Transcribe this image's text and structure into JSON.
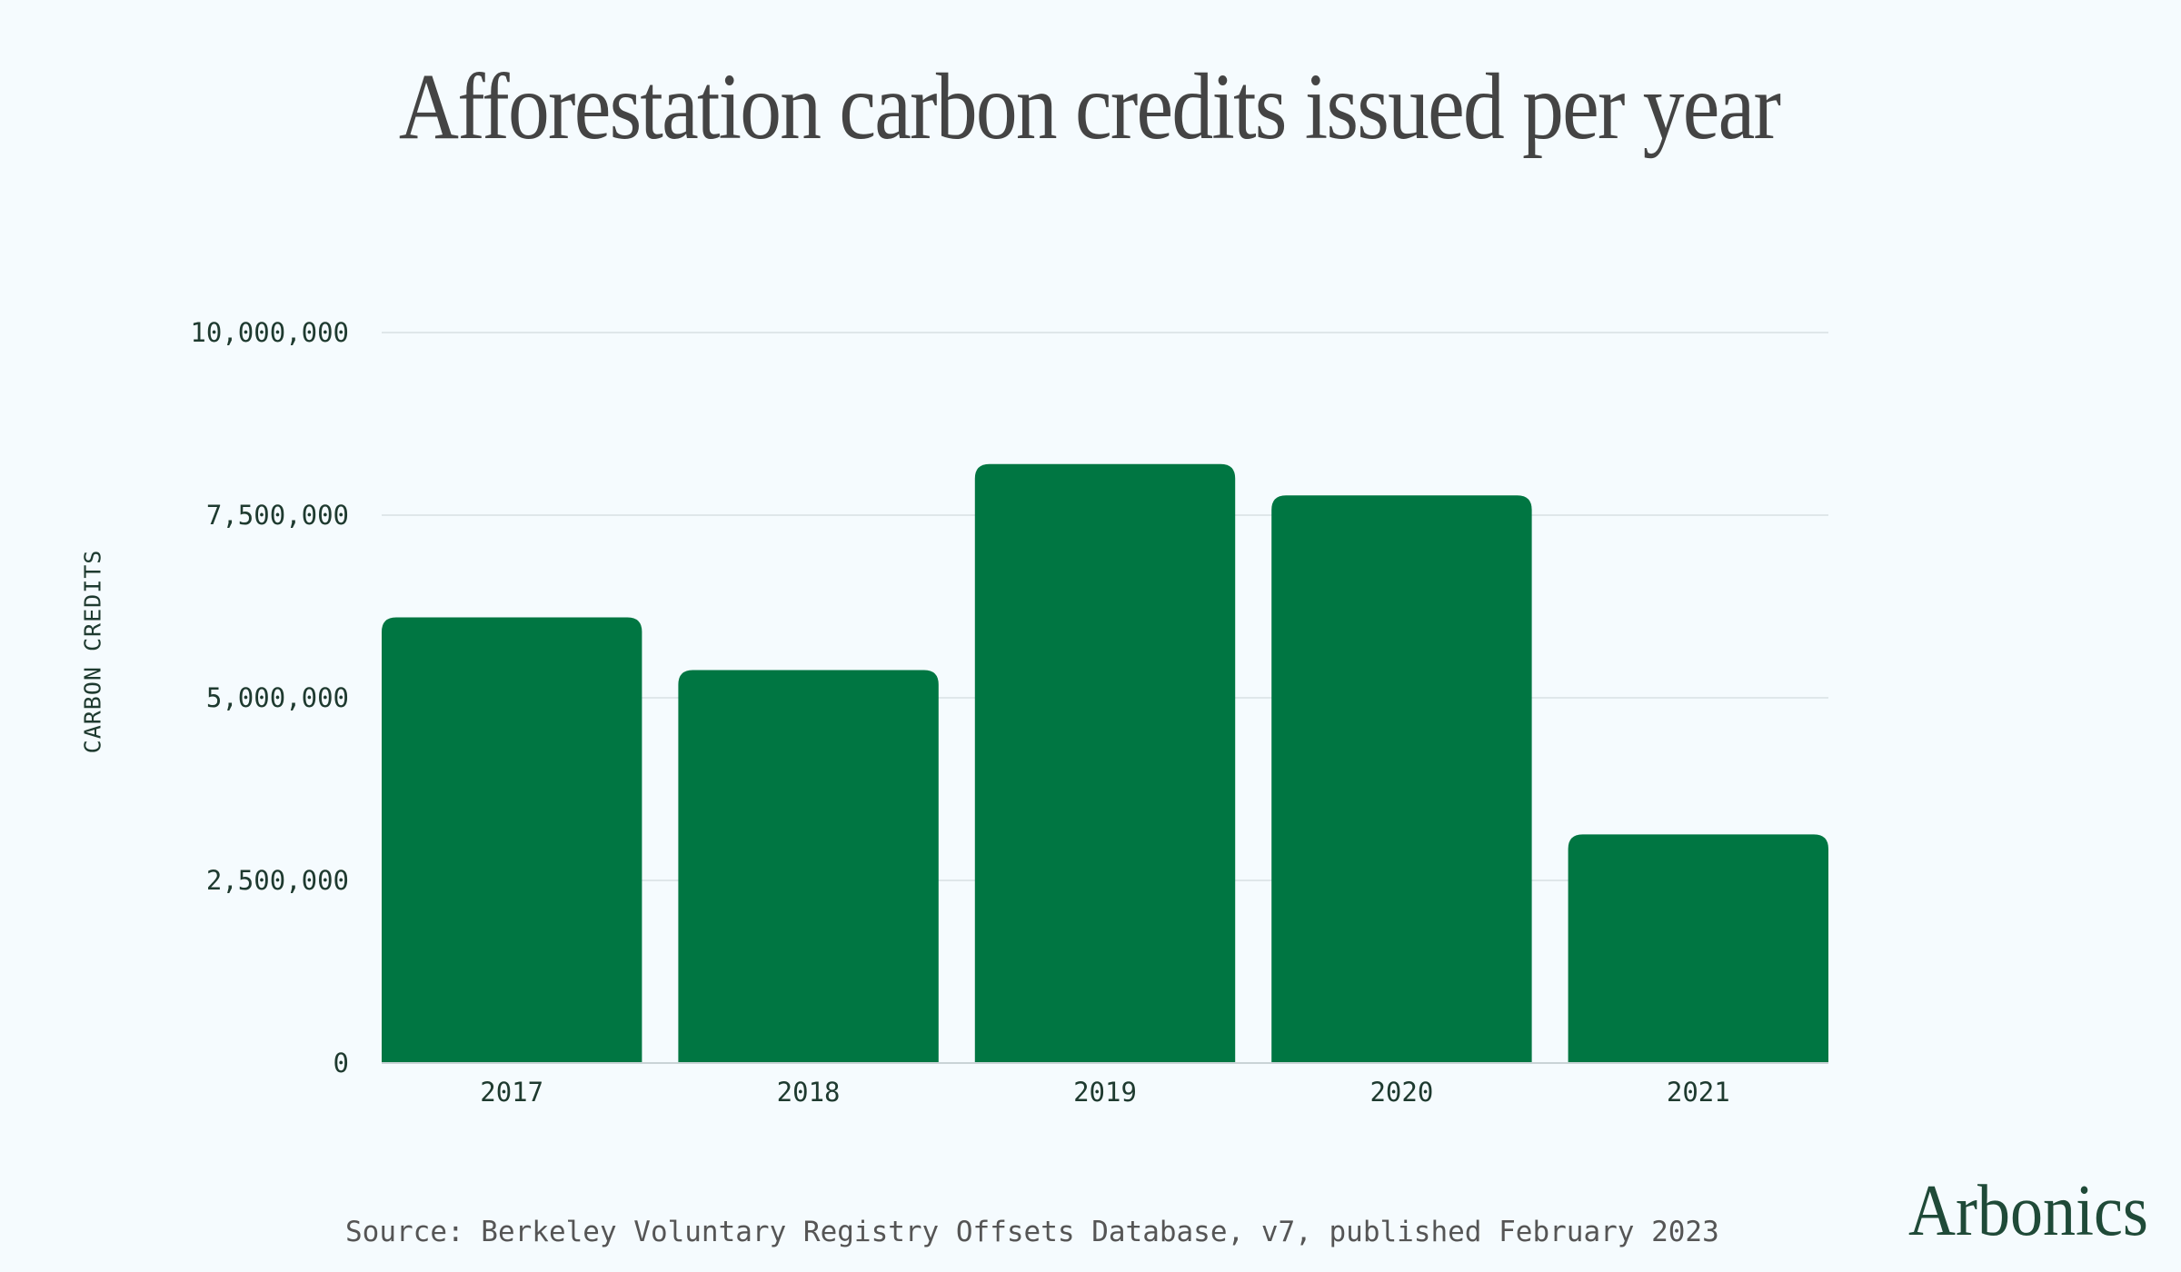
{
  "colors": {
    "background": "#f5fbfe",
    "bar": "#007642",
    "gridline": "#dfe7ea",
    "text": "#1e3a2f",
    "title": "#444444",
    "brand": "#1f4a38"
  },
  "chart_data": {
    "type": "bar",
    "title": "Afforestation carbon credits issued per year",
    "xlabel": "",
    "ylabel": "CARBON CREDITS",
    "categories": [
      "2017",
      "2018",
      "2019",
      "2020",
      "2021"
    ],
    "values": [
      6100000,
      5380000,
      8200000,
      7770000,
      3130000
    ],
    "ylim": [
      0,
      10000000
    ],
    "yticks": [
      0,
      2500000,
      5000000,
      7500000,
      10000000
    ],
    "ytick_labels": [
      "0",
      "2,500,000",
      "5,000,000",
      "7,500,000",
      "10,000,000"
    ],
    "grid": true,
    "legend": "none"
  },
  "footer": {
    "source": "Source: Berkeley Voluntary Registry Offsets Database, v7, published February 2023",
    "brand": "Arbonics"
  }
}
